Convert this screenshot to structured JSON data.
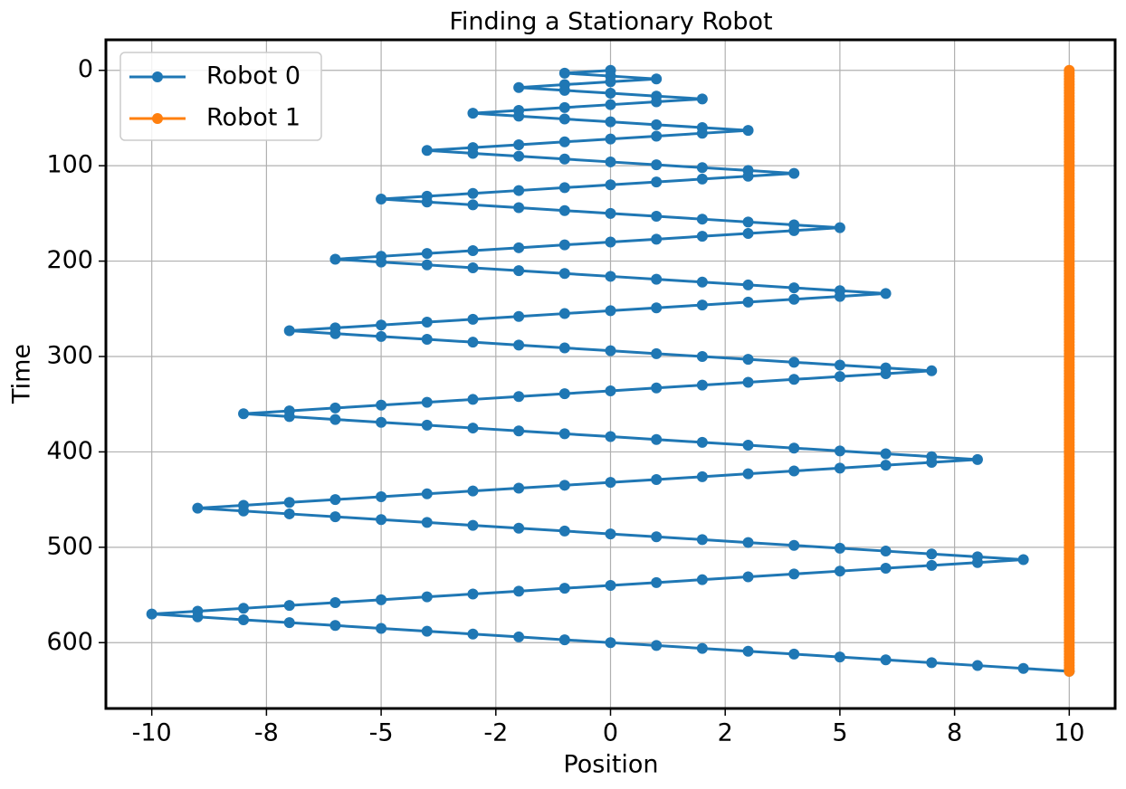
{
  "chart_data": {
    "type": "line",
    "title": "Finding a Stationary Robot",
    "x_label": "Position",
    "y_label": "Time",
    "xlim": [
      -11,
      11
    ],
    "ylim": [
      669,
      -32
    ],
    "xticks": [
      -10,
      {
        "value": -7.5,
        "label": "-8"
      },
      -5,
      {
        "value": -2.5,
        "label": "-2"
      },
      0,
      {
        "value": 2.5,
        "label": "2"
      },
      5,
      {
        "value": 7.5,
        "label": "8"
      },
      10
    ],
    "yticks": [
      0,
      100,
      200,
      300,
      400,
      500,
      600
    ],
    "grid": true,
    "legend": "upper left",
    "markers": true,
    "time": [
      0,
      3,
      6,
      9,
      12,
      15,
      18,
      21,
      24,
      27,
      30,
      33,
      36,
      39,
      42,
      45,
      48,
      51,
      54,
      57,
      60,
      63,
      66,
      69,
      72,
      75,
      78,
      81,
      84,
      87,
      90,
      93,
      96,
      99,
      102,
      105,
      108,
      111,
      114,
      117,
      120,
      123,
      126,
      129,
      132,
      135,
      138,
      141,
      144,
      147,
      150,
      153,
      156,
      159,
      162,
      165,
      168,
      171,
      174,
      177,
      180,
      183,
      186,
      189,
      192,
      195,
      198,
      201,
      204,
      207,
      210,
      213,
      216,
      219,
      222,
      225,
      228,
      231,
      234,
      237,
      240,
      243,
      246,
      249,
      252,
      255,
      258,
      261,
      264,
      267,
      270,
      273,
      276,
      279,
      282,
      285,
      288,
      291,
      294,
      297,
      300,
      303,
      306,
      309,
      312,
      315,
      318,
      321,
      324,
      327,
      330,
      333,
      336,
      339,
      342,
      345,
      348,
      351,
      354,
      357,
      360,
      363,
      366,
      369,
      372,
      375,
      378,
      381,
      384,
      387,
      390,
      393,
      396,
      399,
      402,
      405,
      408,
      411,
      414,
      417,
      420,
      423,
      426,
      429,
      432,
      435,
      438,
      441,
      444,
      447,
      450,
      453,
      456,
      459,
      462,
      465,
      468,
      471,
      474,
      477,
      480,
      483,
      486,
      489,
      492,
      495,
      498,
      501,
      504,
      507,
      510,
      513,
      516,
      519,
      522,
      525,
      528,
      531,
      534,
      537,
      540,
      543,
      546,
      549,
      552,
      555,
      558,
      561,
      564,
      567,
      570,
      573,
      576,
      579,
      582,
      585,
      588,
      591,
      594,
      597,
      600,
      603,
      606,
      609,
      612,
      615,
      618,
      621,
      624,
      627,
      630
    ],
    "series": [
      {
        "name": "Robot 0",
        "color": "#1f77b4",
        "values": [
          0,
          -1,
          0,
          1,
          0,
          -1,
          -2,
          -1,
          0,
          1,
          2,
          1,
          0,
          -1,
          -2,
          -3,
          -2,
          -1,
          0,
          1,
          2,
          3,
          2,
          1,
          0,
          -1,
          -2,
          -3,
          -4,
          -3,
          -2,
          -1,
          0,
          1,
          2,
          3,
          4,
          3,
          2,
          1,
          0,
          -1,
          -2,
          -3,
          -4,
          -5,
          -4,
          -3,
          -2,
          -1,
          0,
          1,
          2,
          3,
          4,
          5,
          4,
          3,
          2,
          1,
          0,
          -1,
          -2,
          -3,
          -4,
          -5,
          -6,
          -5,
          -4,
          -3,
          -2,
          -1,
          0,
          1,
          2,
          3,
          4,
          5,
          6,
          5,
          4,
          3,
          2,
          1,
          0,
          -1,
          -2,
          -3,
          -4,
          -5,
          -6,
          -7,
          -6,
          -5,
          -4,
          -3,
          -2,
          -1,
          0,
          1,
          2,
          3,
          4,
          5,
          6,
          7,
          6,
          5,
          4,
          3,
          2,
          1,
          0,
          -1,
          -2,
          -3,
          -4,
          -5,
          -6,
          -7,
          -8,
          -7,
          -6,
          -5,
          -4,
          -3,
          -2,
          -1,
          0,
          1,
          2,
          3,
          4,
          5,
          6,
          7,
          8,
          7,
          6,
          5,
          4,
          3,
          2,
          1,
          0,
          -1,
          -2,
          -3,
          -4,
          -5,
          -6,
          -7,
          -8,
          -9,
          -8,
          -7,
          -6,
          -5,
          -4,
          -3,
          -2,
          -1,
          0,
          1,
          2,
          3,
          4,
          5,
          6,
          7,
          8,
          9,
          8,
          7,
          6,
          5,
          4,
          3,
          2,
          1,
          0,
          -1,
          -2,
          -3,
          -4,
          -5,
          -6,
          -7,
          -8,
          -9,
          -10,
          -9,
          -8,
          -7,
          -6,
          -5,
          -4,
          -3,
          -2,
          -1,
          0,
          1,
          2,
          3,
          4,
          5,
          6,
          7,
          8,
          9,
          10
        ]
      },
      {
        "name": "Robot 1",
        "color": "#ff7f0e",
        "values": [
          10,
          10,
          10,
          10,
          10,
          10,
          10,
          10,
          10,
          10,
          10,
          10,
          10,
          10,
          10,
          10,
          10,
          10,
          10,
          10,
          10,
          10,
          10,
          10,
          10,
          10,
          10,
          10,
          10,
          10,
          10,
          10,
          10,
          10,
          10,
          10,
          10,
          10,
          10,
          10,
          10,
          10,
          10,
          10,
          10,
          10,
          10,
          10,
          10,
          10,
          10,
          10,
          10,
          10,
          10,
          10,
          10,
          10,
          10,
          10,
          10,
          10,
          10,
          10,
          10,
          10,
          10,
          10,
          10,
          10,
          10,
          10,
          10,
          10,
          10,
          10,
          10,
          10,
          10,
          10,
          10,
          10,
          10,
          10,
          10,
          10,
          10,
          10,
          10,
          10,
          10,
          10,
          10,
          10,
          10,
          10,
          10,
          10,
          10,
          10,
          10,
          10,
          10,
          10,
          10,
          10,
          10,
          10,
          10,
          10,
          10,
          10,
          10,
          10,
          10,
          10,
          10,
          10,
          10,
          10,
          10,
          10,
          10,
          10,
          10,
          10,
          10,
          10,
          10,
          10,
          10,
          10,
          10,
          10,
          10,
          10,
          10,
          10,
          10,
          10,
          10,
          10,
          10,
          10,
          10,
          10,
          10,
          10,
          10,
          10,
          10,
          10,
          10,
          10,
          10,
          10,
          10,
          10,
          10,
          10,
          10,
          10,
          10,
          10,
          10,
          10,
          10,
          10,
          10,
          10,
          10,
          10,
          10,
          10,
          10,
          10,
          10,
          10,
          10,
          10,
          10,
          10,
          10,
          10,
          10,
          10,
          10,
          10,
          10,
          10,
          10,
          10,
          10,
          10,
          10,
          10,
          10,
          10,
          10,
          10,
          10,
          10,
          10,
          10,
          10,
          10,
          10,
          10,
          10,
          10,
          10
        ]
      }
    ]
  }
}
